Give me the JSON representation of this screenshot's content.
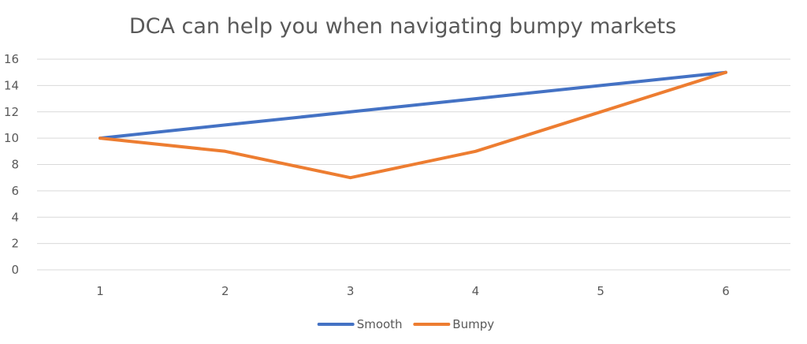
{
  "chart_data": {
    "type": "line",
    "title": "DCA can help you  when navigating bumpy markets",
    "xlabel": "",
    "ylabel": "",
    "x": [
      1,
      2,
      3,
      4,
      5,
      6
    ],
    "x_tick_labels": [
      "1",
      "2",
      "3",
      "4",
      "5",
      "6"
    ],
    "y_tick_labels": [
      "0",
      "2",
      "4",
      "6",
      "8",
      "10",
      "12",
      "14",
      "16"
    ],
    "ylim": [
      0,
      16
    ],
    "y_step": 2,
    "grid": "horizontal",
    "legend_position": "bottom",
    "series": [
      {
        "name": "Smooth",
        "color": "#4472C4",
        "values": [
          10,
          11,
          12,
          13,
          14,
          15
        ]
      },
      {
        "name": "Bumpy",
        "color": "#ED7D31",
        "values": [
          10,
          9,
          7,
          9,
          12,
          15
        ]
      }
    ]
  }
}
